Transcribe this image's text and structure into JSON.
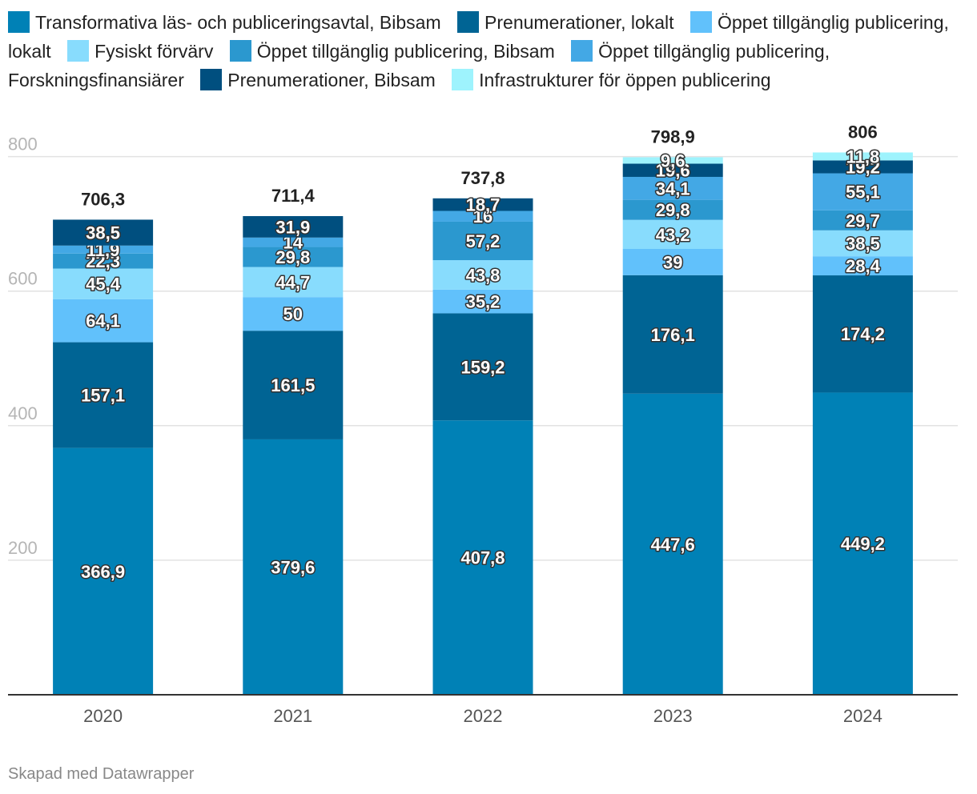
{
  "chart_data": {
    "type": "stacked-bar",
    "categories": [
      "2020",
      "2021",
      "2022",
      "2023",
      "2024"
    ],
    "ylim": [
      0,
      830
    ],
    "yticks": [
      200,
      400,
      600,
      800
    ],
    "series": [
      {
        "name": "Transformativa läs- och publiceringsavtal, Bibsam",
        "color": "#0081b6",
        "values": [
          366.9,
          379.6,
          407.8,
          447.6,
          449.2
        ],
        "labels": [
          "366,9",
          "379,6",
          "407,8",
          "447,6",
          "449,2"
        ]
      },
      {
        "name": "Prenumerationer, lokalt",
        "color": "#006494",
        "values": [
          157.1,
          161.5,
          159.2,
          176.1,
          174.2
        ],
        "labels": [
          "157,1",
          "161,5",
          "159,2",
          "176,1",
          "174,2"
        ]
      },
      {
        "name": "Öppet tillgänglig publicering, lokalt",
        "color": "#61c1fb",
        "values": [
          64.1,
          50,
          35.2,
          39,
          28.4
        ],
        "labels": [
          "64,1",
          "50",
          "35,2",
          "39",
          "28,4"
        ]
      },
      {
        "name": "Fysiskt förvärv",
        "color": "#88dcfd",
        "values": [
          45.4,
          44.7,
          43.8,
          43.2,
          38.5
        ],
        "labels": [
          "45,4",
          "44,7",
          "43,8",
          "43,2",
          "38,5"
        ]
      },
      {
        "name": "Öppet tillgänglig publicering, Bibsam",
        "color": "#2b98cf",
        "values": [
          22.3,
          29.8,
          57.2,
          29.8,
          29.7
        ],
        "labels": [
          "22,3",
          "29,8",
          "57,2",
          "29,8",
          "29,7"
        ]
      },
      {
        "name": "Öppet tillgänglig publicering, Forskningsfinansiärer",
        "color": "#43a8e5",
        "values": [
          11.9,
          14,
          16,
          34.1,
          55.1
        ],
        "labels": [
          "11,9",
          "14",
          "16",
          "34,1",
          "55,1"
        ]
      },
      {
        "name": "Prenumerationer, Bibsam",
        "color": "#004f7f",
        "values": [
          38.5,
          31.9,
          18.7,
          19.6,
          19.2
        ],
        "labels": [
          "38,5",
          "31,9",
          "18,7",
          "19,6",
          "19,2"
        ]
      },
      {
        "name": "Infrastrukturer för öppen publicering",
        "color": "#9ef3fd",
        "values": [
          0,
          0,
          0,
          9.6,
          11.8
        ],
        "labels": [
          "",
          "",
          "",
          "9,6",
          "11,8"
        ]
      }
    ],
    "totals": [
      706.3,
      711.4,
      737.8,
      798.9,
      806
    ],
    "total_labels": [
      "706,3",
      "711,4",
      "737,8",
      "798,9",
      "806"
    ]
  },
  "footer": "Skapad med Datawrapper"
}
